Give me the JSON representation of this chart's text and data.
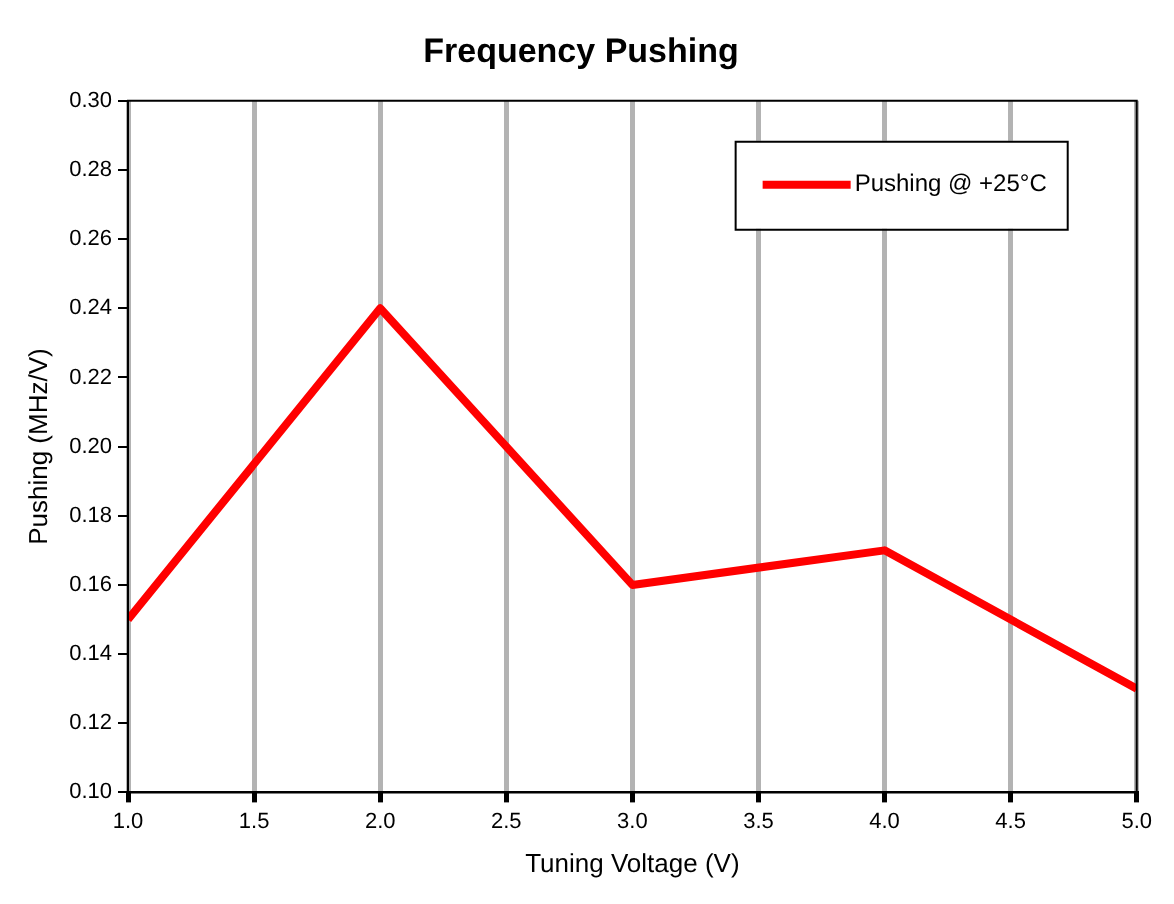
{
  "chart_data": {
    "type": "line",
    "title": "Frequency Pushing",
    "xlabel": "Tuning Voltage (V)",
    "ylabel": "Pushing (MHz/V)",
    "x": [
      1,
      2,
      3,
      4,
      5
    ],
    "series": [
      {
        "name": "Pushing @ +25°C",
        "color": "#ff0000",
        "values": [
          0.15,
          0.24,
          0.16,
          0.17,
          0.13
        ]
      }
    ],
    "xlim": [
      1,
      5
    ],
    "xticks": [
      {
        "value": 1,
        "label": "1.0"
      },
      {
        "value": 1.5,
        "label": "1.5"
      },
      {
        "value": 2,
        "label": "2.0"
      },
      {
        "value": 2.5,
        "label": "2.5"
      },
      {
        "value": 3,
        "label": "3.0"
      },
      {
        "value": 3.5,
        "label": "3.5"
      },
      {
        "value": 4,
        "label": "4.0"
      },
      {
        "value": 4.5,
        "label": "4.5"
      },
      {
        "value": 5,
        "label": "5.0"
      }
    ],
    "ylim": [
      0.1,
      0.3
    ],
    "yticks": [
      {
        "value": 0.1,
        "label": "0.10"
      },
      {
        "value": 0.12,
        "label": "0.12"
      },
      {
        "value": 0.14,
        "label": "0.14"
      },
      {
        "value": 0.16,
        "label": "0.16"
      },
      {
        "value": 0.18,
        "label": "0.18"
      },
      {
        "value": 0.2,
        "label": "0.20"
      },
      {
        "value": 0.22,
        "label": "0.22"
      },
      {
        "value": 0.24,
        "label": "0.24"
      },
      {
        "value": 0.26,
        "label": "0.26"
      },
      {
        "value": 0.28,
        "label": "0.28"
      },
      {
        "value": 0.3,
        "label": "0.30"
      }
    ],
    "grid": "x",
    "legend": "top right",
    "marker": "none",
    "line_style": "solid"
  }
}
